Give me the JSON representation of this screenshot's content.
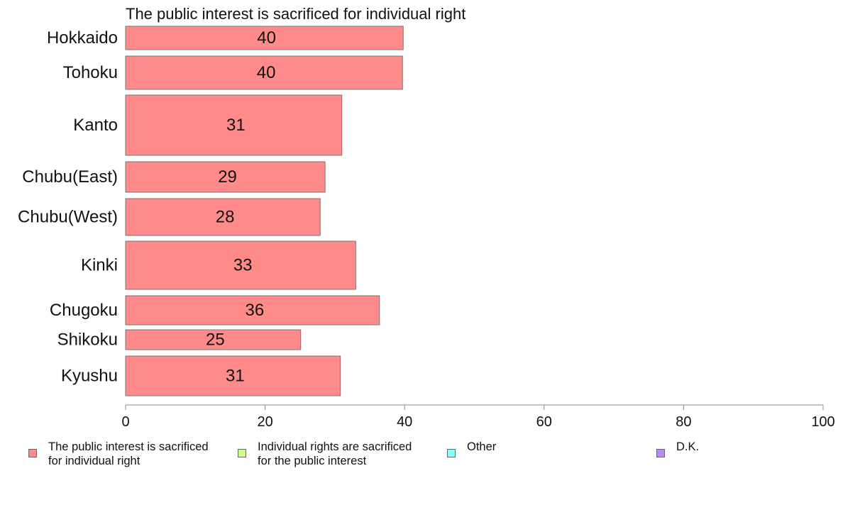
{
  "chart_data": {
    "type": "bar",
    "orientation": "horizontal",
    "title": "The public interest is sacrificed for individual right",
    "categories": [
      "Hokkaido",
      "Tohoku",
      "Kanto",
      "Chubu(East)",
      "Chubu(West)",
      "Kinki",
      "Chugoku",
      "Shikoku",
      "Kyushu"
    ],
    "values": [
      39.8,
      39.7,
      31.0,
      28.6,
      27.9,
      33.0,
      36.4,
      25.1,
      30.8
    ],
    "data_labels": [
      "40",
      "40",
      "31",
      "29",
      "28",
      "33",
      "36",
      "25",
      "31"
    ],
    "xlim": [
      0,
      100
    ],
    "xticks": [
      "0",
      "20",
      "40",
      "60",
      "80",
      "100"
    ],
    "xlabel": "",
    "ylabel": "",
    "grid": false,
    "bar_color": "#ff8a8a",
    "note": ""
  },
  "legend": {
    "placement": "bottom",
    "items": [
      {
        "label": "The public interest is sacrificed\nfor individual right",
        "color": "#ff8a8a"
      },
      {
        "label": "Individual rights are sacrificed\nfor the public interest",
        "color": "#ccff88"
      },
      {
        "label": "Other",
        "color": "#88ffff"
      },
      {
        "label": "D.K.",
        "color": "#bb88ff"
      }
    ]
  }
}
